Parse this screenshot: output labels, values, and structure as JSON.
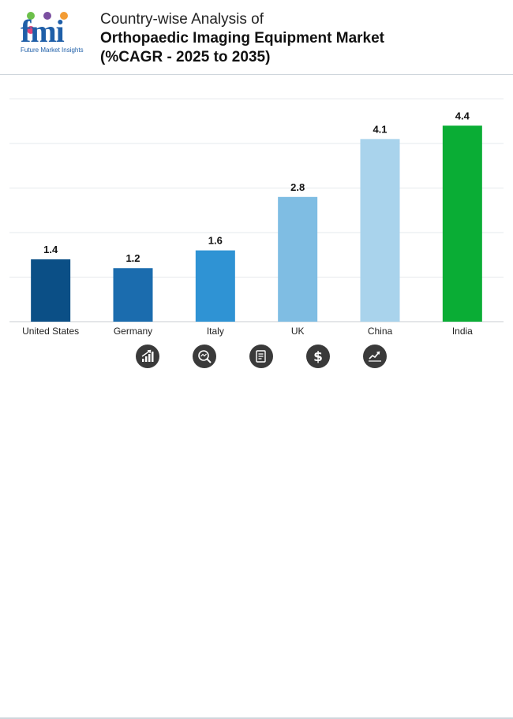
{
  "header": {
    "logo_text": "fmi",
    "logo_tagline": "Future Market Insights",
    "title_line1": "Country-wise Analysis of",
    "title_line2": "Orthopaedic Imaging Equipment Market",
    "title_line3": "(%CAGR - 2025 to 2035)"
  },
  "colors": {
    "brand_blue": "#1f5fa8",
    "dot_green": "#6cc04a",
    "dot_purple": "#7b4fa0",
    "dot_orange": "#f39c34",
    "dot_pink": "#e0457b"
  },
  "chart_data": {
    "type": "bar",
    "title": "Country-wise Analysis of Orthopaedic Imaging Equipment Market (%CAGR - 2025 to 2035)",
    "xlabel": "",
    "ylabel": "",
    "ylim": [
      0,
      5
    ],
    "grid": true,
    "categories": [
      "United States",
      "Germany",
      "Italy",
      "UK",
      "China",
      "India"
    ],
    "values": [
      1.4,
      1.2,
      1.6,
      2.8,
      4.1,
      4.4
    ],
    "labels": [
      "1.4",
      "1.2",
      "1.6",
      "2.8",
      "4.1",
      "4.4"
    ],
    "bar_colors": [
      "#0b4f86",
      "#1b6cae",
      "#2f93d4",
      "#7fbde3",
      "#a9d3ec",
      "#0aad35"
    ]
  },
  "footer": {
    "icons": [
      "bar-growth-icon",
      "magnifier-chart-icon",
      "document-icon",
      "dollar-icon",
      "trend-line-icon"
    ]
  }
}
